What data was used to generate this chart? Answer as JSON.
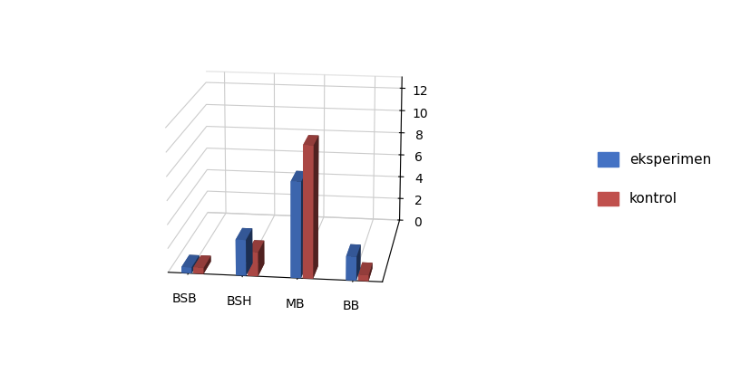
{
  "categories": [
    "BSB",
    "BSH",
    "MB",
    "BB"
  ],
  "eksperimen": [
    0.5,
    3,
    8,
    2
  ],
  "kontrol": [
    0.5,
    2,
    11,
    0.5
  ],
  "eksperimen_color": "#4472C4",
  "kontrol_color": "#C0504D",
  "ylim": [
    0,
    13
  ],
  "yticks": [
    0,
    2,
    4,
    6,
    8,
    10,
    12
  ],
  "legend_eksperimen": "eksperimen",
  "legend_kontrol": "kontrol",
  "background_color": "#FFFFFF",
  "bar_width": 0.28,
  "bar_depth": 0.28
}
